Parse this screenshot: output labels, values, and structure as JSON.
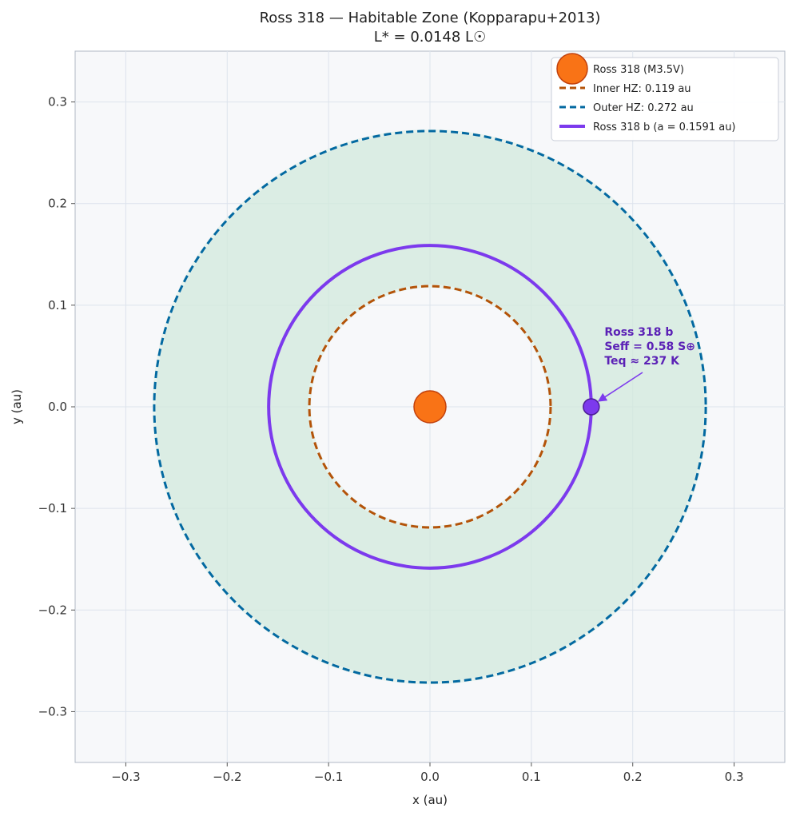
{
  "chart_data": {
    "type": "scatter",
    "title": "Ross 318 — Habitable Zone  (Kopparapu+2013)",
    "subtitle": "L* = 0.0148 L☉",
    "xlabel": "x (au)",
    "ylabel": "y (au)",
    "xlim": [
      -0.35,
      0.35
    ],
    "ylim": [
      -0.35,
      0.35
    ],
    "xticks": [
      -0.3,
      -0.2,
      -0.1,
      0.0,
      0.1,
      0.2,
      0.3
    ],
    "xtick_labels": [
      "−0.3",
      "−0.2",
      "−0.1",
      "0.0",
      "0.1",
      "0.2",
      "0.3"
    ],
    "yticks": [
      0.3,
      0.2,
      0.1,
      0.0,
      -0.1,
      -0.2,
      -0.3
    ],
    "ytick_labels": [
      "0.3",
      "0.2",
      "0.1",
      "0.0",
      "−0.1",
      "−0.2",
      "−0.3"
    ],
    "grid": true,
    "legend_position": "top-right",
    "star": {
      "name": "Ross 318 (M3.5V)",
      "x": 0.0,
      "y": 0.0,
      "color": "#f97316",
      "edge_color": "#c2410c"
    },
    "hz": {
      "inner_au": 0.119,
      "outer_au": 0.272,
      "fill_color": "#d1e9dc",
      "inner_color": "#b45309",
      "outer_color": "#0369a1",
      "inner_label": "Inner HZ: 0.119 au",
      "outer_label": "Outer HZ: 0.272 au"
    },
    "planet": {
      "label": "Ross 318 b  (a = 0.1591 au)",
      "a_au": 0.1591,
      "x": 0.1591,
      "y": 0.0,
      "color": "#7c3aed",
      "annotation_color": "#5b21b6",
      "annotation_lines": [
        "Ross 318 b",
        "Seff = 0.58 S⊕",
        "Teq ≈ 237 K"
      ],
      "annotation_x": 0.18,
      "annotation_y": 0.057
    }
  }
}
